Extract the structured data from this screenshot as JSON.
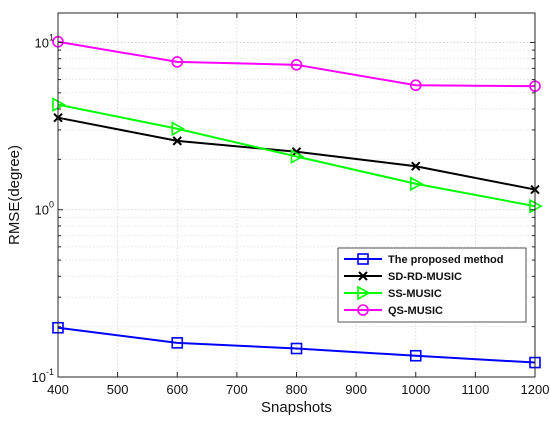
{
  "chart_data": {
    "type": "line",
    "title": "",
    "xlabel": "Snapshots",
    "ylabel": "RMSE(degree)",
    "xlim": [
      400,
      1200
    ],
    "ylim": [
      0.1,
      15
    ],
    "yscale": "log",
    "grid": true,
    "legend_position": "bottom-right",
    "x_ticks": [
      "400",
      "500",
      "600",
      "700",
      "800",
      "900",
      "1000",
      "1100",
      "1200"
    ],
    "y_ticks": [
      {
        "base": "10",
        "exp": "-1"
      },
      {
        "base": "10",
        "exp": "0"
      },
      {
        "base": "10",
        "exp": "1"
      }
    ],
    "x": [
      400,
      600,
      800,
      1000,
      1200
    ],
    "series": [
      {
        "name": "The proposed method",
        "color": "#0000ff",
        "marker": "square",
        "values": [
          0.197,
          0.16,
          0.148,
          0.134,
          0.122
        ]
      },
      {
        "name": "SD-RD-MUSIC",
        "color": "#000000",
        "marker": "x",
        "values": [
          3.55,
          2.58,
          2.22,
          1.82,
          1.32
        ]
      },
      {
        "name": "SS-MUSIC",
        "color": "#00ff00",
        "marker": "triangle-right",
        "values": [
          4.25,
          3.05,
          2.08,
          1.43,
          1.05
        ]
      },
      {
        "name": "QS-MUSIC",
        "color": "#ff00ff",
        "marker": "circle",
        "values": [
          10.1,
          7.65,
          7.35,
          5.55,
          5.48
        ]
      }
    ]
  }
}
